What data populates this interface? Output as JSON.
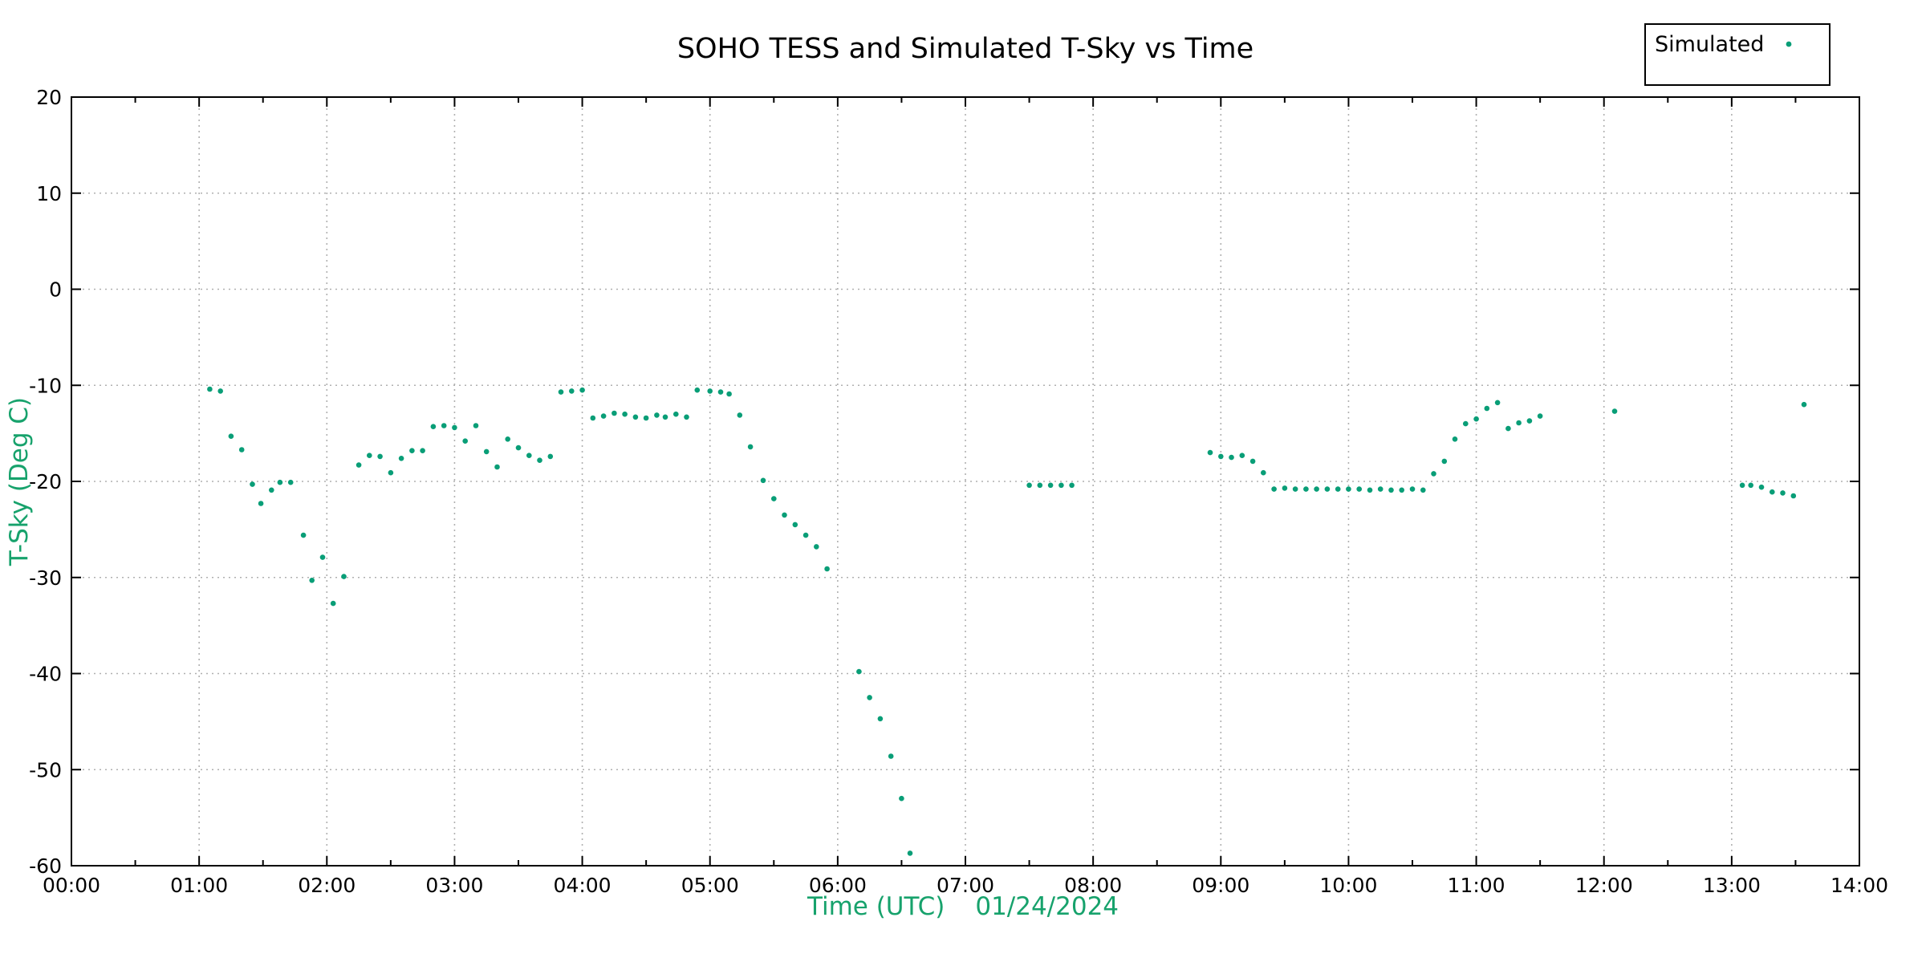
{
  "chart_data": {
    "type": "scatter",
    "title": "SOHO TESS and Simulated T-Sky vs Time",
    "xlabel": "Time (UTC)",
    "x_date_annotation": "01/24/2024",
    "ylabel": "T-Sky (Deg C)",
    "x_tick_labels": [
      "00:00",
      "01:00",
      "02:00",
      "03:00",
      "04:00",
      "05:00",
      "06:00",
      "07:00",
      "08:00",
      "09:00",
      "10:00",
      "11:00",
      "12:00",
      "13:00",
      "14:00"
    ],
    "y_ticks": [
      20,
      10,
      0,
      -10,
      -20,
      -30,
      -40,
      -50,
      -60
    ],
    "xlim_hours": [
      0,
      14
    ],
    "ylim": [
      -60,
      20
    ],
    "grid": "dotted gray, vertical line each hour, horizontal line each 10 deg",
    "legend_position": "top-right",
    "legend": {
      "label": "Simulated"
    },
    "series": [
      {
        "name": "Simulated",
        "points": [
          [
            "01:05",
            -10.4
          ],
          [
            "01:10",
            -10.6
          ],
          [
            "01:15",
            -15.3
          ],
          [
            "01:20",
            -16.7
          ],
          [
            "01:25",
            -20.3
          ],
          [
            "01:29",
            -22.3
          ],
          [
            "01:34",
            -20.9
          ],
          [
            "01:38",
            -20.1
          ],
          [
            "01:43",
            -20.1
          ],
          [
            "01:49",
            -25.6
          ],
          [
            "01:53",
            -30.3
          ],
          [
            "01:58",
            -27.9
          ],
          [
            "02:03",
            -32.7
          ],
          [
            "02:08",
            -29.9
          ],
          [
            "02:15",
            -18.3
          ],
          [
            "02:20",
            -17.3
          ],
          [
            "02:25",
            -17.4
          ],
          [
            "02:30",
            -19.1
          ],
          [
            "02:35",
            -17.6
          ],
          [
            "02:40",
            -16.8
          ],
          [
            "02:45",
            -16.8
          ],
          [
            "02:50",
            -14.3
          ],
          [
            "02:55",
            -14.2
          ],
          [
            "03:00",
            -14.4
          ],
          [
            "03:05",
            -15.8
          ],
          [
            "03:10",
            -14.2
          ],
          [
            "03:15",
            -16.9
          ],
          [
            "03:20",
            -18.5
          ],
          [
            "03:25",
            -15.6
          ],
          [
            "03:30",
            -16.5
          ],
          [
            "03:35",
            -17.3
          ],
          [
            "03:40",
            -17.8
          ],
          [
            "03:45",
            -17.4
          ],
          [
            "03:50",
            -10.7
          ],
          [
            "03:55",
            -10.6
          ],
          [
            "04:00",
            -10.5
          ],
          [
            "04:05",
            -13.4
          ],
          [
            "04:10",
            -13.2
          ],
          [
            "04:15",
            -12.9
          ],
          [
            "04:20",
            -13.0
          ],
          [
            "04:25",
            -13.3
          ],
          [
            "04:30",
            -13.4
          ],
          [
            "04:35",
            -13.1
          ],
          [
            "04:39",
            -13.3
          ],
          [
            "04:44",
            -13.0
          ],
          [
            "04:49",
            -13.3
          ],
          [
            "04:54",
            -10.5
          ],
          [
            "05:00",
            -10.6
          ],
          [
            "05:05",
            -10.7
          ],
          [
            "05:09",
            -10.9
          ],
          [
            "05:14",
            -13.1
          ],
          [
            "05:19",
            -16.4
          ],
          [
            "05:25",
            -19.9
          ],
          [
            "05:30",
            -21.8
          ],
          [
            "05:35",
            -23.5
          ],
          [
            "05:40",
            -24.5
          ],
          [
            "05:45",
            -25.6
          ],
          [
            "05:50",
            -26.8
          ],
          [
            "05:55",
            -29.1
          ],
          [
            "06:10",
            -39.8
          ],
          [
            "06:15",
            -42.5
          ],
          [
            "06:20",
            -44.7
          ],
          [
            "06:25",
            -48.6
          ],
          [
            "06:30",
            -53.0
          ],
          [
            "06:34",
            -58.7
          ],
          [
            "07:30",
            -20.4
          ],
          [
            "07:35",
            -20.4
          ],
          [
            "07:40",
            -20.4
          ],
          [
            "07:45",
            -20.4
          ],
          [
            "07:50",
            -20.4
          ],
          [
            "08:55",
            -17.0
          ],
          [
            "09:00",
            -17.4
          ],
          [
            "09:05",
            -17.5
          ],
          [
            "09:10",
            -17.3
          ],
          [
            "09:15",
            -17.9
          ],
          [
            "09:20",
            -19.1
          ],
          [
            "09:25",
            -20.8
          ],
          [
            "09:30",
            -20.7
          ],
          [
            "09:35",
            -20.8
          ],
          [
            "09:40",
            -20.8
          ],
          [
            "09:45",
            -20.8
          ],
          [
            "09:50",
            -20.8
          ],
          [
            "09:55",
            -20.8
          ],
          [
            "10:00",
            -20.8
          ],
          [
            "10:05",
            -20.8
          ],
          [
            "10:10",
            -20.9
          ],
          [
            "10:15",
            -20.8
          ],
          [
            "10:20",
            -20.9
          ],
          [
            "10:25",
            -20.9
          ],
          [
            "10:30",
            -20.8
          ],
          [
            "10:35",
            -20.9
          ],
          [
            "10:40",
            -19.2
          ],
          [
            "10:45",
            -17.9
          ],
          [
            "10:50",
            -15.6
          ],
          [
            "10:55",
            -14.0
          ],
          [
            "11:00",
            -13.5
          ],
          [
            "11:05",
            -12.4
          ],
          [
            "11:10",
            -11.8
          ],
          [
            "11:15",
            -14.5
          ],
          [
            "11:20",
            -13.9
          ],
          [
            "11:25",
            -13.7
          ],
          [
            "11:30",
            -13.2
          ],
          [
            "12:05",
            -12.7
          ],
          [
            "13:05",
            -20.4
          ],
          [
            "13:09",
            -20.4
          ],
          [
            "13:14",
            -20.6
          ],
          [
            "13:19",
            -21.1
          ],
          [
            "13:24",
            -21.2
          ],
          [
            "13:29",
            -21.5
          ],
          [
            "13:34",
            -12.0
          ]
        ]
      }
    ]
  },
  "colors": {
    "point": "#099e77",
    "axis_title": "#17a26c",
    "grid": "#b0b0b0",
    "frame": "#000000",
    "background": "#ffffff"
  }
}
